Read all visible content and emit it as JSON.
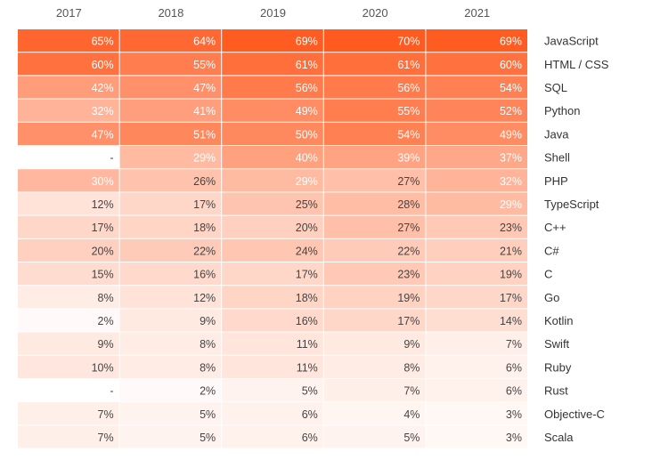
{
  "chart_data": {
    "type": "heatmap",
    "x": [
      "2017",
      "2018",
      "2019",
      "2020",
      "2021"
    ],
    "y": [
      "JavaScript",
      "HTML / CSS",
      "SQL",
      "Python",
      "Java",
      "Shell",
      "PHP",
      "TypeScript",
      "C++",
      "C#",
      "C",
      "Go",
      "Kotlin",
      "Swift",
      "Ruby",
      "Rust",
      "Objective-C",
      "Scala"
    ],
    "values": [
      [
        65,
        64,
        69,
        70,
        69
      ],
      [
        60,
        55,
        61,
        61,
        60
      ],
      [
        42,
        47,
        56,
        56,
        54
      ],
      [
        32,
        41,
        49,
        55,
        52
      ],
      [
        47,
        51,
        50,
        54,
        49
      ],
      [
        null,
        29,
        40,
        39,
        37
      ],
      [
        30,
        26,
        29,
        27,
        32
      ],
      [
        12,
        17,
        25,
        28,
        29
      ],
      [
        17,
        18,
        20,
        27,
        23
      ],
      [
        20,
        22,
        24,
        22,
        21
      ],
      [
        15,
        16,
        17,
        23,
        19
      ],
      [
        8,
        12,
        18,
        19,
        17
      ],
      [
        2,
        9,
        16,
        17,
        14
      ],
      [
        9,
        8,
        11,
        9,
        7
      ],
      [
        10,
        8,
        11,
        8,
        6
      ],
      [
        null,
        2,
        5,
        7,
        6
      ],
      [
        7,
        5,
        6,
        4,
        3
      ],
      [
        7,
        5,
        6,
        5,
        3
      ]
    ],
    "labels": [
      [
        "65%",
        "64%",
        "69%",
        "70%",
        "69%"
      ],
      [
        "60%",
        "55%",
        "61%",
        "61%",
        "60%"
      ],
      [
        "42%",
        "47%",
        "56%",
        "56%",
        "54%"
      ],
      [
        "32%",
        "41%",
        "49%",
        "55%",
        "52%"
      ],
      [
        "47%",
        "51%",
        "50%",
        "54%",
        "49%"
      ],
      [
        "-",
        "29%",
        "40%",
        "39%",
        "37%"
      ],
      [
        "30%",
        "26%",
        "29%",
        "27%",
        "32%"
      ],
      [
        "12%",
        "17%",
        "25%",
        "28%",
        "29%"
      ],
      [
        "17%",
        "18%",
        "20%",
        "27%",
        "23%"
      ],
      [
        "20%",
        "22%",
        "24%",
        "22%",
        "21%"
      ],
      [
        "15%",
        "16%",
        "17%",
        "23%",
        "19%"
      ],
      [
        "8%",
        "12%",
        "18%",
        "19%",
        "17%"
      ],
      [
        "2%",
        "9%",
        "16%",
        "17%",
        "14%"
      ],
      [
        "9%",
        "8%",
        "11%",
        "9%",
        "7%"
      ],
      [
        "10%",
        "8%",
        "11%",
        "8%",
        "6%"
      ],
      [
        "-",
        "2%",
        "5%",
        "7%",
        "6%"
      ],
      [
        "7%",
        "5%",
        "6%",
        "4%",
        "3%"
      ],
      [
        "7%",
        "5%",
        "6%",
        "5%",
        "3%"
      ]
    ],
    "colors": {
      "high": "#ff5a1f",
      "low": "#ffffff"
    },
    "title": "",
    "xlabel": "",
    "ylabel": ""
  }
}
